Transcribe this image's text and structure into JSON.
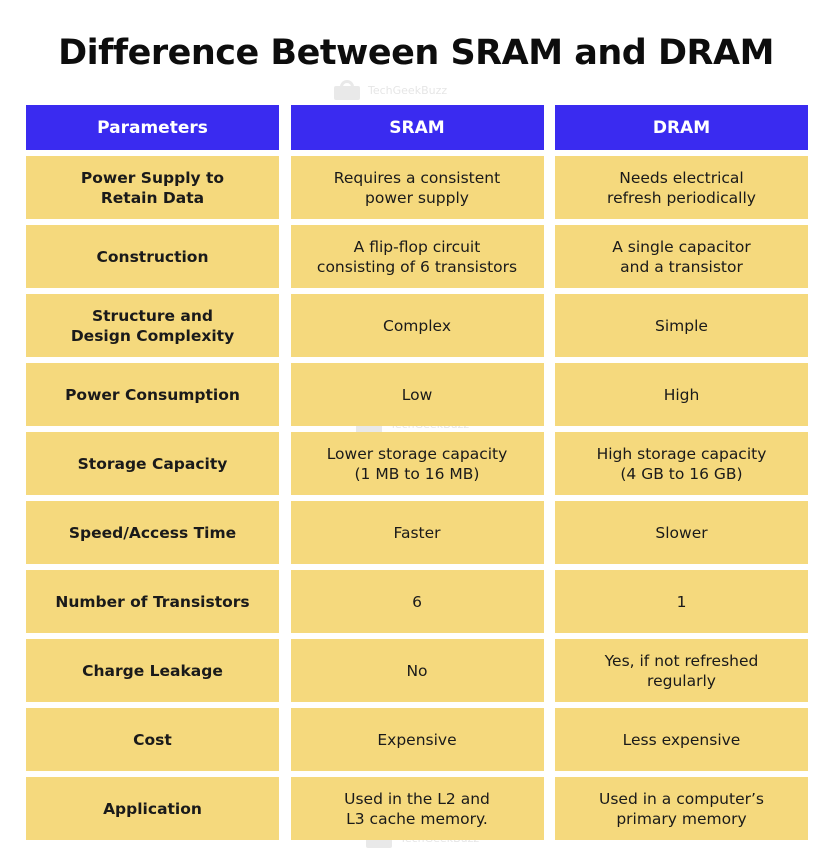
{
  "title": "Difference Between SRAM and DRAM",
  "watermark": "TechGeekBuzz",
  "colors": {
    "header_bg": "#3a2bf0",
    "cell_bg": "#f5d97d",
    "header_text": "#ffffff"
  },
  "table": {
    "headers": [
      "Parameters",
      "SRAM",
      "DRAM"
    ],
    "rows": [
      [
        "Power Supply to\nRetain Data",
        "Requires a consistent\npower supply",
        "Needs electrical\nrefresh periodically"
      ],
      [
        "Construction",
        "A flip-flop circuit\nconsisting of 6 transistors",
        "A single capacitor\nand a transistor"
      ],
      [
        "Structure and\nDesign Complexity",
        "Complex",
        "Simple"
      ],
      [
        "Power Consumption",
        "Low",
        "High"
      ],
      [
        "Storage Capacity",
        "Lower storage capacity\n(1 MB to 16 MB)",
        "High storage capacity\n(4 GB to 16 GB)"
      ],
      [
        "Speed/Access Time",
        "Faster",
        "Slower"
      ],
      [
        "Number of Transistors",
        "6",
        "1"
      ],
      [
        "Charge Leakage",
        "No",
        "Yes, if not refreshed\nregularly"
      ],
      [
        "Cost",
        "Expensive",
        "Less expensive"
      ],
      [
        "Application",
        "Used in the L2 and\nL3 cache memory.",
        "Used in a computer’s\nprimary memory"
      ]
    ]
  }
}
